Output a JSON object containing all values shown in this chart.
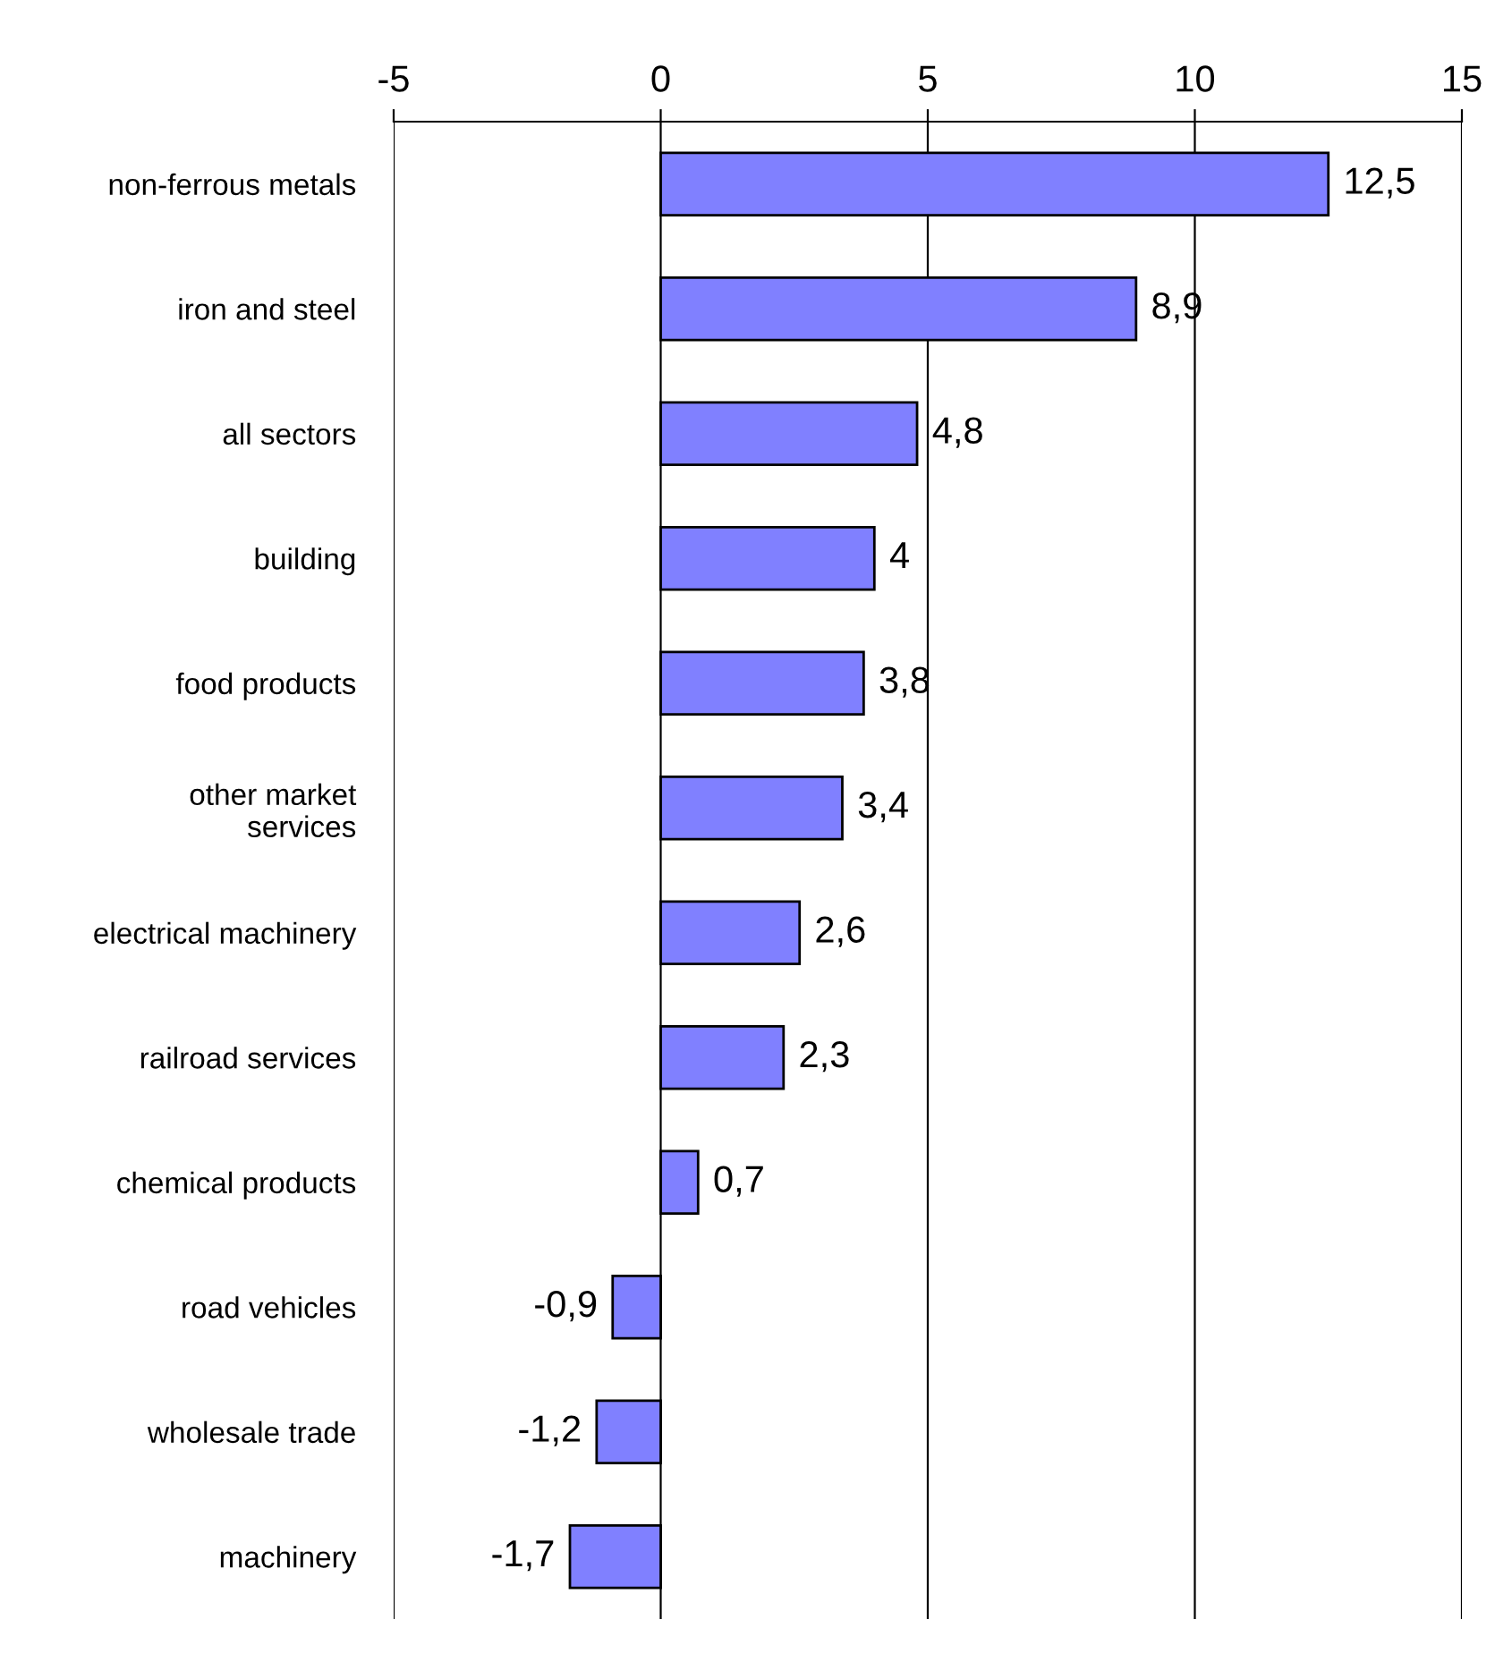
{
  "chart_data": {
    "type": "bar",
    "orientation": "horizontal",
    "categories": [
      "non-ferrous metals",
      "iron and steel",
      "all sectors",
      "building",
      "food products",
      "other market\nservices",
      "electrical machinery",
      "railroad services",
      "chemical products",
      "road vehicles",
      "wholesale trade",
      "machinery"
    ],
    "values": [
      12.5,
      8.9,
      4.8,
      4,
      3.8,
      3.4,
      2.6,
      2.3,
      0.7,
      -0.9,
      -1.2,
      -1.7
    ],
    "value_labels": [
      "12,5",
      "8,9",
      "4,8",
      "4",
      "3,8",
      "3,4",
      "2,6",
      "2,3",
      "0,7",
      "-0,9",
      "-1,2",
      "-1,7"
    ],
    "color": "#8080ff",
    "xlim": [
      -5,
      15
    ],
    "xticks": [
      -5,
      0,
      5,
      10,
      15
    ],
    "grid": "x"
  }
}
